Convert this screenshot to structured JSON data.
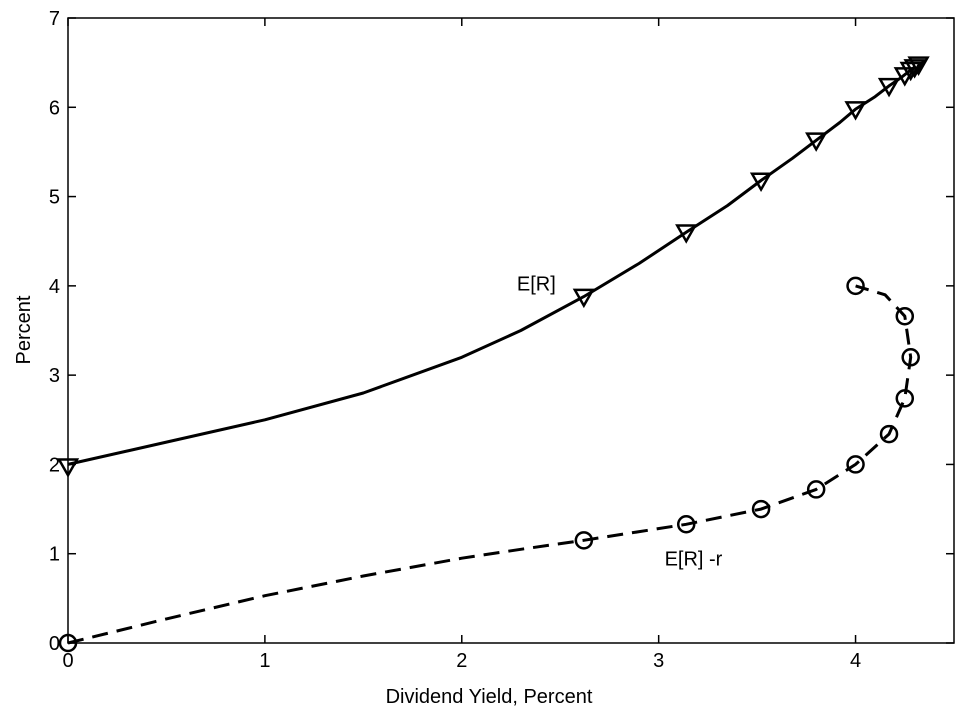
{
  "chart_data": {
    "type": "line",
    "title": "",
    "xlabel": "Dividend Yield, Percent",
    "ylabel": "Percent",
    "xlim": [
      0,
      4.5
    ],
    "ylim": [
      0,
      7
    ],
    "xticks": [
      "0",
      "1",
      "2",
      "3",
      "4"
    ],
    "yticks": [
      "0",
      "1",
      "2",
      "3",
      "4",
      "5",
      "6",
      "7"
    ],
    "grid": false,
    "legend": "none",
    "series": [
      {
        "style": "solid",
        "marker": "triangle-down",
        "color": "#000000",
        "line": [
          [
            0,
            2.0
          ],
          [
            0.5,
            2.25
          ],
          [
            1.0,
            2.5
          ],
          [
            1.5,
            2.8
          ],
          [
            2.0,
            3.2
          ],
          [
            2.3,
            3.5
          ],
          [
            2.62,
            3.88
          ],
          [
            2.9,
            4.25
          ],
          [
            3.14,
            4.6
          ],
          [
            3.35,
            4.9
          ],
          [
            3.52,
            5.18
          ],
          [
            3.68,
            5.43
          ],
          [
            3.8,
            5.63
          ],
          [
            3.92,
            5.83
          ],
          [
            4.0,
            5.98
          ],
          [
            4.1,
            6.12
          ],
          [
            4.17,
            6.24
          ],
          [
            4.23,
            6.33
          ],
          [
            4.27,
            6.4
          ],
          [
            4.3,
            6.45
          ]
        ],
        "markers": [
          [
            0,
            1.98
          ],
          [
            2.62,
            3.88
          ],
          [
            3.14,
            4.6
          ],
          [
            3.52,
            5.18
          ],
          [
            3.8,
            5.63
          ],
          [
            4.0,
            5.98
          ],
          [
            4.17,
            6.24
          ],
          [
            4.25,
            6.36
          ],
          [
            4.28,
            6.42
          ],
          [
            4.3,
            6.45
          ],
          [
            4.32,
            6.48
          ]
        ]
      },
      {
        "style": "dashed",
        "marker": "circle",
        "color": "#000000",
        "line": [
          [
            0,
            0
          ],
          [
            0.5,
            0.27
          ],
          [
            1.0,
            0.53
          ],
          [
            1.5,
            0.75
          ],
          [
            2.0,
            0.95
          ],
          [
            2.3,
            1.05
          ],
          [
            2.62,
            1.15
          ],
          [
            3.14,
            1.33
          ],
          [
            3.52,
            1.5
          ],
          [
            3.8,
            1.72
          ],
          [
            4.0,
            2.0
          ],
          [
            4.17,
            2.34
          ],
          [
            4.25,
            2.74
          ],
          [
            4.28,
            3.2
          ],
          [
            4.25,
            3.66
          ],
          [
            4.15,
            3.9
          ],
          [
            4.0,
            4.0
          ]
        ],
        "markers": [
          [
            0,
            0
          ],
          [
            2.62,
            1.15
          ],
          [
            3.14,
            1.33
          ],
          [
            3.52,
            1.5
          ],
          [
            3.8,
            1.72
          ],
          [
            4.0,
            2.0
          ],
          [
            4.17,
            2.34
          ],
          [
            4.25,
            2.74
          ],
          [
            4.28,
            3.2
          ],
          [
            4.25,
            3.66
          ],
          [
            4.0,
            4.0
          ]
        ]
      }
    ],
    "annotations": [
      {
        "text": "E[R]",
        "x": 2.28,
        "y": 3.95
      },
      {
        "text": "E[R] -r",
        "x": 3.03,
        "y": 0.87
      }
    ]
  }
}
